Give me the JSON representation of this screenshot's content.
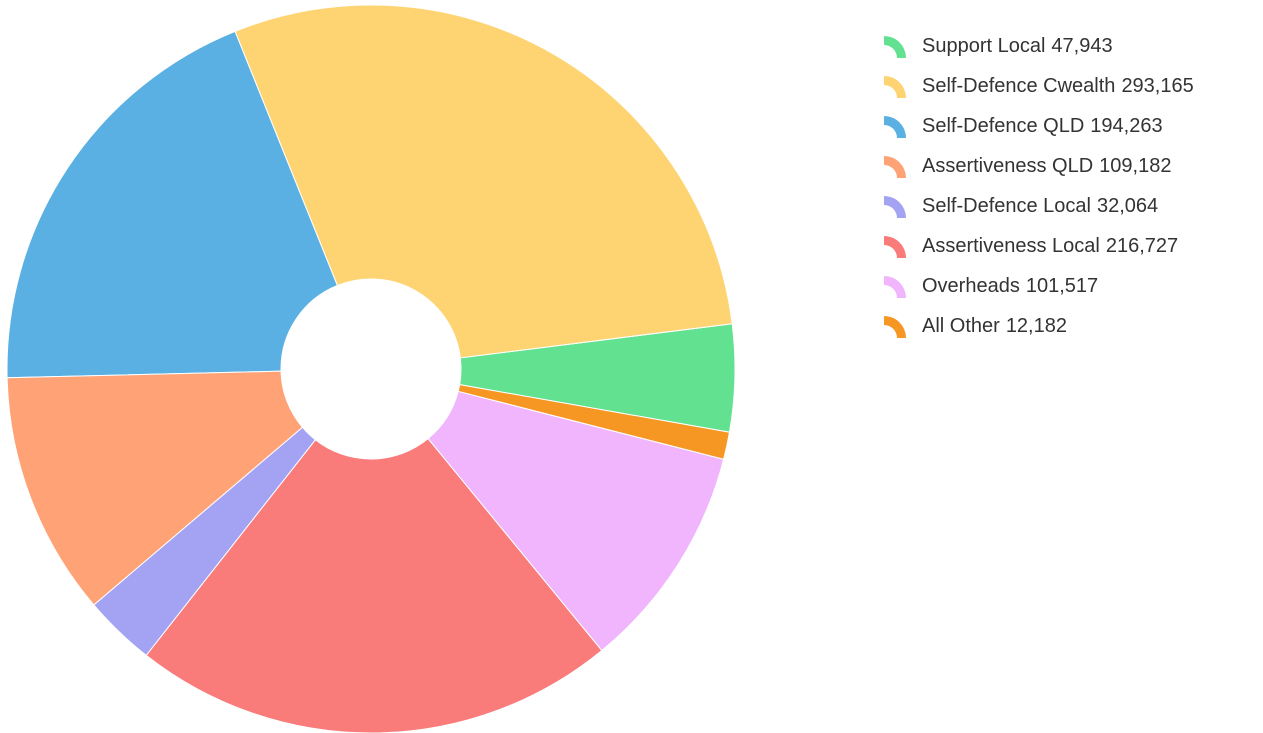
{
  "chart_data": {
    "type": "pie",
    "title": "",
    "donut": true,
    "legend_position": "right",
    "slices": [
      {
        "label": "Support Local",
        "value": 47943,
        "value_text": "47,943",
        "color": "#62e191"
      },
      {
        "label": "Self-Defence Cwealth",
        "value": 293165,
        "value_text": "293,165",
        "color": "#fed472"
      },
      {
        "label": "Self-Defence QLD",
        "value": 194263,
        "value_text": "194,263",
        "color": "#5ab0e2"
      },
      {
        "label": "Assertiveness QLD",
        "value": 109182,
        "value_text": "109,182",
        "color": "#ffa377"
      },
      {
        "label": "Self-Defence Local",
        "value": 32064,
        "value_text": "32,064",
        "color": "#a4a2f2"
      },
      {
        "label": "Assertiveness Local",
        "value": 216727,
        "value_text": "216,727",
        "color": "#f97b7a"
      },
      {
        "label": "Overheads",
        "value": 101517,
        "value_text": "101,517",
        "color": "#f0b5fd"
      },
      {
        "label": "All Other",
        "value": 12182,
        "value_text": "12,182",
        "color": "#f69723"
      }
    ]
  }
}
